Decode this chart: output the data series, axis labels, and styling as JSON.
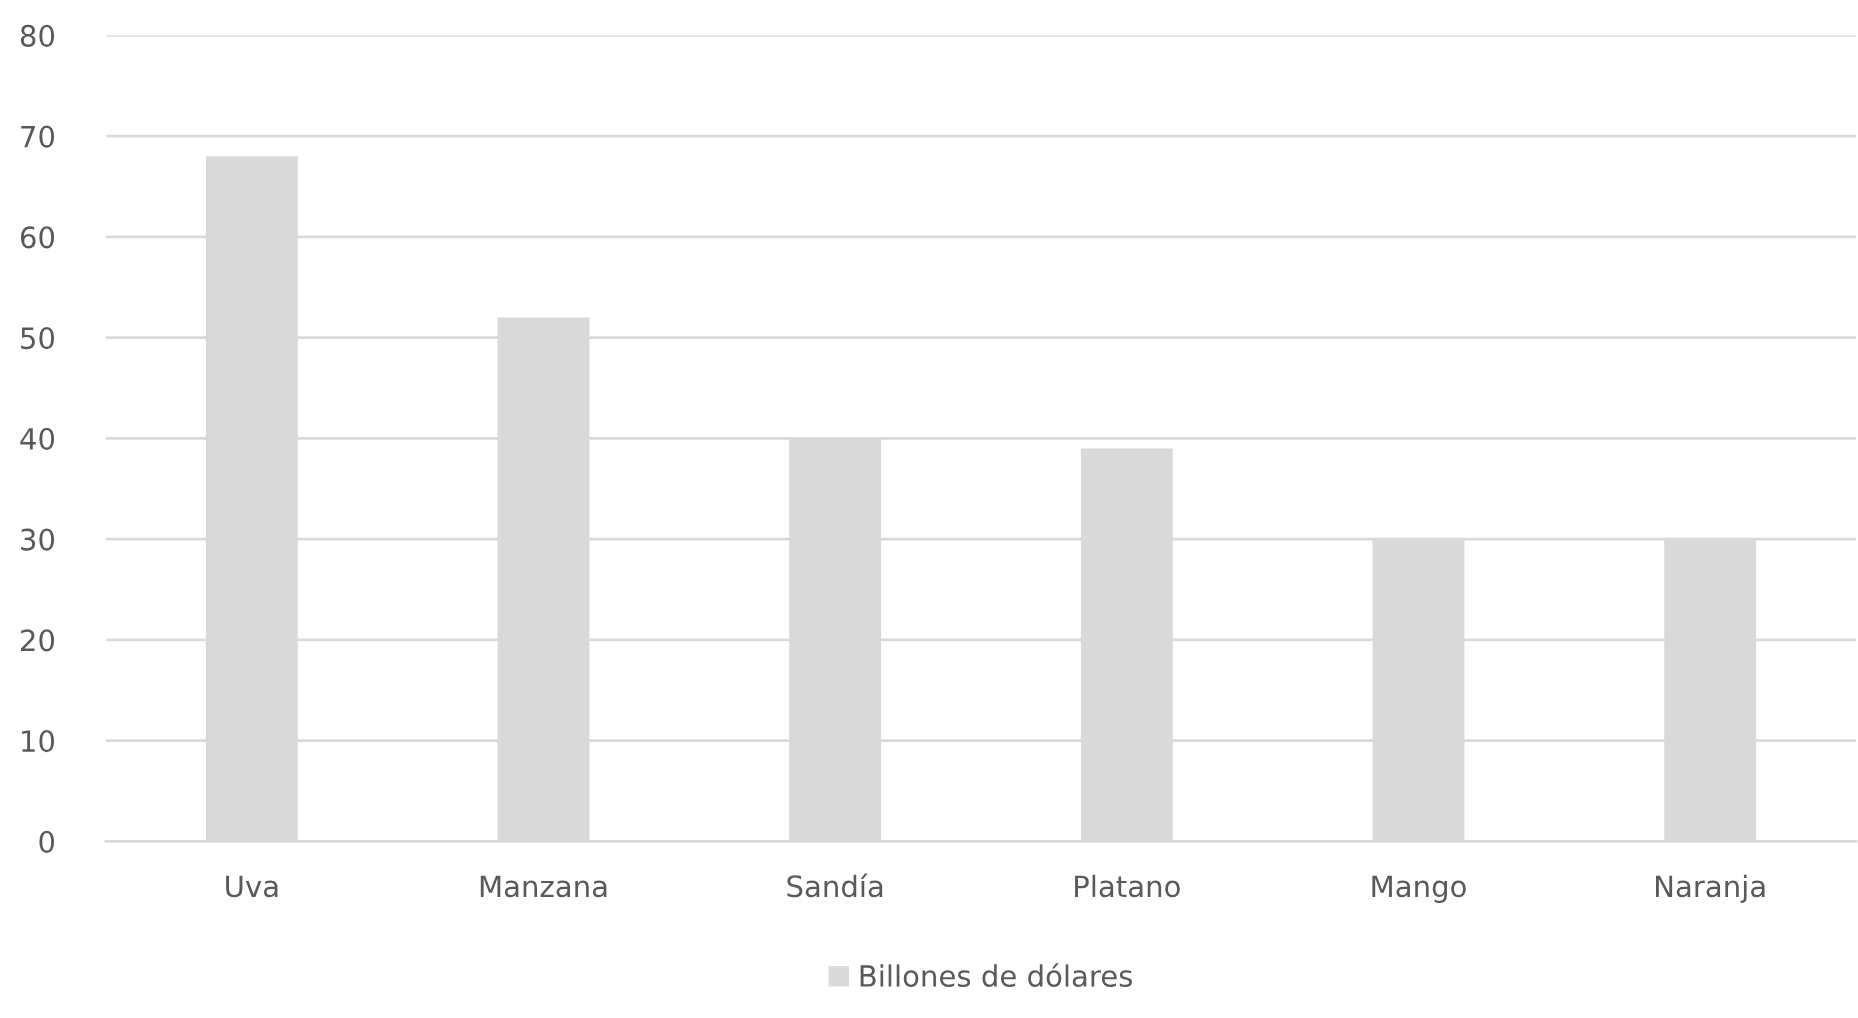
{
  "chart_data": {
    "type": "bar",
    "categories": [
      "Uva",
      "Manzana",
      "Sandía",
      "Platano",
      "Mango",
      "Naranja"
    ],
    "series": [
      {
        "name": "Billones de dólares",
        "color": "#d9d9d9",
        "values": [
          68,
          52,
          40,
          39,
          30,
          30
        ]
      }
    ],
    "ylim": [
      0,
      80
    ],
    "yticks": [
      0,
      10,
      20,
      30,
      40,
      50,
      60,
      70,
      80
    ],
    "grid": "y",
    "legend": "bottom"
  }
}
